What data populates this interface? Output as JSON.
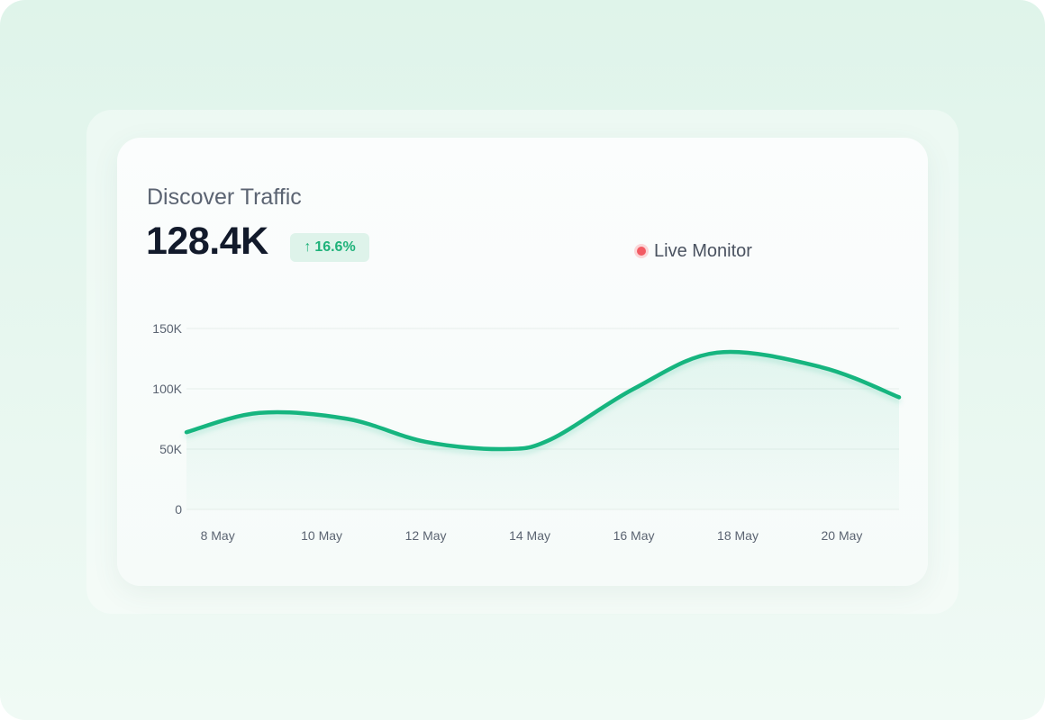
{
  "card": {
    "title": "Discover Traffic",
    "metric": "128.4K",
    "change": "16.6%",
    "change_icon": "arrow-up-icon",
    "live_label": "Live Monitor"
  },
  "colors": {
    "accent": "#16b57f",
    "badge_bg": "#def3ea",
    "live_dot": "#f25b63",
    "grid": "#e6eeeb"
  },
  "chart_data": {
    "type": "area",
    "title": "",
    "xlabel": "",
    "ylabel": "",
    "ylim": [
      0,
      150000
    ],
    "grid": true,
    "yticks": [
      0,
      50000,
      100000,
      150000
    ],
    "ytick_labels": [
      "0",
      "50K",
      "100K",
      "150K"
    ],
    "xtick_labels": [
      "8 May",
      "10 May",
      "12 May",
      "14 May",
      "16 May",
      "18 May",
      "20 May"
    ],
    "x_domain": [
      7.4,
      21.1
    ],
    "series": [
      {
        "x": [
          7.4,
          8.8,
          10.5,
          12.0,
          13.5,
          14.4,
          16.0,
          17.6,
          19.6,
          21.1
        ],
        "values": [
          64000,
          80000,
          75000,
          56000,
          50000,
          58000,
          100000,
          130000,
          118000,
          93000
        ]
      }
    ]
  }
}
